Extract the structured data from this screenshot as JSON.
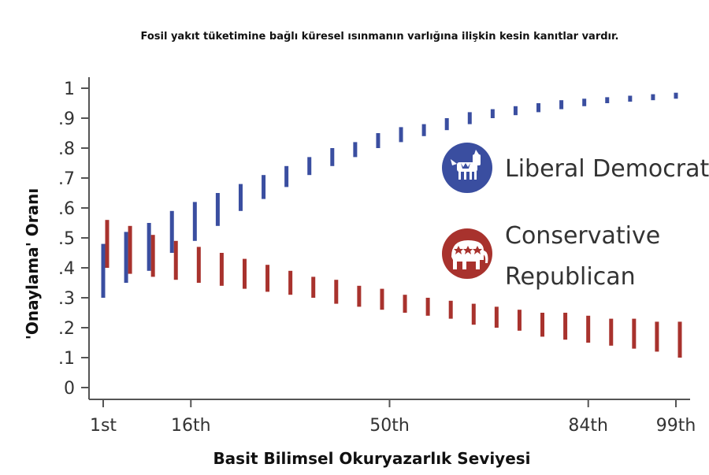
{
  "chart_data": {
    "type": "errorbar",
    "title": "Fosil yakıt tüketimine bağlı küresel ısınmanın varlığına ilişkin kesin kanıtlar vardır.",
    "xlabel": "Basit Bilimsel Okuryazarlık Seviyesi",
    "ylabel": "'Onaylama' Oranı",
    "ylim": [
      0,
      1
    ],
    "yticks": [
      "0",
      ".1",
      ".2",
      ".3",
      ".4",
      ".5",
      ".6",
      ".7",
      ".8",
      ".9",
      "1"
    ],
    "xticks": [
      {
        "label": "1st",
        "x": 1
      },
      {
        "label": "16th",
        "x": 16
      },
      {
        "label": "50th",
        "x": 50
      },
      {
        "label": "84th",
        "x": 84
      },
      {
        "label": "99th",
        "x": 99
      }
    ],
    "legend": [
      {
        "name": "Liberal Democrat",
        "icon": "donkey-icon",
        "lines": [
          "Liberal Democrat"
        ]
      },
      {
        "name": "Conservative Republican",
        "icon": "elephant-icon",
        "lines": [
          "Conservative",
          "Republican"
        ]
      }
    ],
    "series": [
      {
        "name": "Liberal Democrat",
        "color": "#3a4ea0",
        "ranges": [
          [
            0.3,
            0.48
          ],
          [
            0.35,
            0.52
          ],
          [
            0.39,
            0.55
          ],
          [
            0.45,
            0.59
          ],
          [
            0.49,
            0.62
          ],
          [
            0.54,
            0.65
          ],
          [
            0.59,
            0.68
          ],
          [
            0.63,
            0.71
          ],
          [
            0.67,
            0.74
          ],
          [
            0.71,
            0.77
          ],
          [
            0.74,
            0.8
          ],
          [
            0.77,
            0.82
          ],
          [
            0.8,
            0.85
          ],
          [
            0.82,
            0.87
          ],
          [
            0.84,
            0.88
          ],
          [
            0.86,
            0.9
          ],
          [
            0.88,
            0.92
          ],
          [
            0.9,
            0.93
          ],
          [
            0.91,
            0.94
          ],
          [
            0.92,
            0.95
          ],
          [
            0.93,
            0.96
          ],
          [
            0.94,
            0.965
          ],
          [
            0.95,
            0.97
          ],
          [
            0.955,
            0.975
          ],
          [
            0.96,
            0.98
          ],
          [
            0.965,
            0.985
          ]
        ]
      },
      {
        "name": "Conservative Republican",
        "color": "#a8322d",
        "ranges": [
          [
            0.4,
            0.56
          ],
          [
            0.38,
            0.54
          ],
          [
            0.37,
            0.51
          ],
          [
            0.36,
            0.49
          ],
          [
            0.35,
            0.47
          ],
          [
            0.34,
            0.45
          ],
          [
            0.33,
            0.43
          ],
          [
            0.32,
            0.41
          ],
          [
            0.31,
            0.39
          ],
          [
            0.3,
            0.37
          ],
          [
            0.28,
            0.36
          ],
          [
            0.27,
            0.34
          ],
          [
            0.26,
            0.33
          ],
          [
            0.25,
            0.31
          ],
          [
            0.24,
            0.3
          ],
          [
            0.23,
            0.29
          ],
          [
            0.21,
            0.28
          ],
          [
            0.2,
            0.27
          ],
          [
            0.19,
            0.26
          ],
          [
            0.17,
            0.25
          ],
          [
            0.16,
            0.25
          ],
          [
            0.15,
            0.24
          ],
          [
            0.14,
            0.23
          ],
          [
            0.13,
            0.23
          ],
          [
            0.12,
            0.22
          ],
          [
            0.1,
            0.22
          ]
        ]
      }
    ]
  },
  "colors": {
    "axis": "#555555",
    "democrat": "#3a4ea0",
    "republican": "#a8322d",
    "text": "#333333"
  }
}
